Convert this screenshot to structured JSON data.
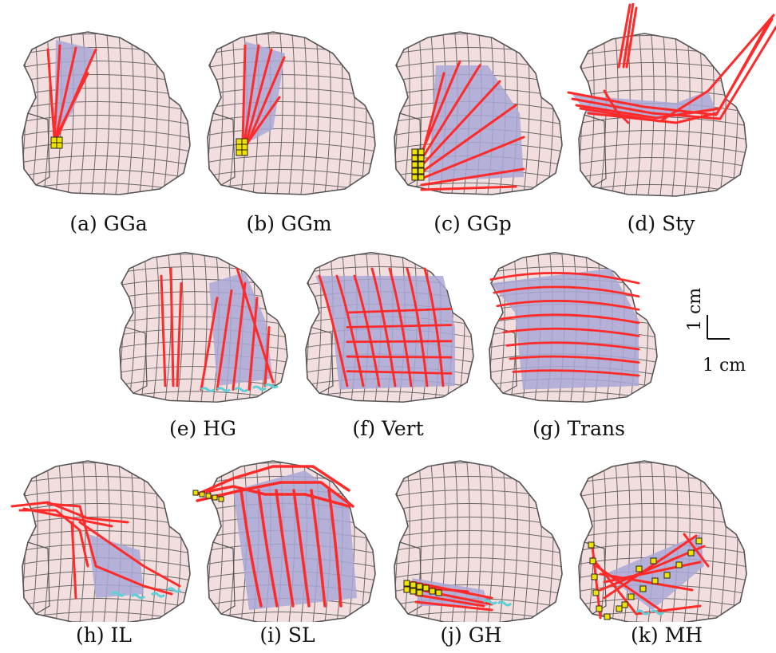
{
  "figure": {
    "panels": [
      {
        "id": "a",
        "caption": "(a) GGa",
        "muscle": "ggA",
        "anchors": "small-front"
      },
      {
        "id": "b",
        "caption": "(b) GGm",
        "muscle": "ggM",
        "anchors": "small-front"
      },
      {
        "id": "c",
        "caption": "(c) GGp",
        "muscle": "ggP",
        "anchors": "tall-front"
      },
      {
        "id": "d",
        "caption": "(d) Sty",
        "muscle": "sty",
        "anchors": "none"
      },
      {
        "id": "e",
        "caption": "(e) HG",
        "muscle": "hg",
        "anchors": "cyan-bottom"
      },
      {
        "id": "f",
        "caption": "(f) Vert",
        "muscle": "vert",
        "anchors": "none"
      },
      {
        "id": "g",
        "caption": "(g) Trans",
        "muscle": "trans",
        "anchors": "none"
      },
      {
        "id": "h",
        "caption": "(h) IL",
        "muscle": "il",
        "anchors": "cyan-right"
      },
      {
        "id": "i",
        "caption": "(i) SL",
        "muscle": "sl",
        "anchors": "none"
      },
      {
        "id": "j",
        "caption": "(j) GH",
        "muscle": "gh",
        "anchors": "bottom-row"
      },
      {
        "id": "k",
        "caption": "(k) MH",
        "muscle": "mh",
        "anchors": "mh-row"
      }
    ],
    "scale_bar": {
      "vertical_label": "1 cm",
      "horizontal_label": "1 cm"
    },
    "colors": {
      "tongue_fill": "#f2dede",
      "mesh_line": "#555555",
      "muscle_fill": "#a9a8d6",
      "fiber": "#ff2a2a",
      "anchor_node": "#f2e200",
      "cyan_node": "#5fd0d8"
    }
  }
}
